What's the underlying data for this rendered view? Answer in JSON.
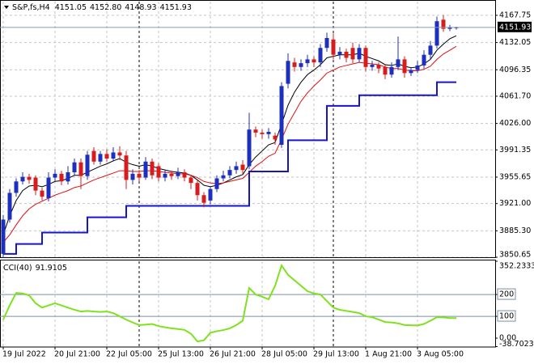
{
  "chart_data": [
    {
      "type": "candlestick",
      "title": "S&P,fs,H4",
      "ohlc_labels": [
        "4151.05",
        "4152.80",
        "4148.93",
        "4151.93"
      ],
      "categories": [
        "19 Jul 2022",
        null,
        null,
        null,
        null,
        null,
        null,
        null,
        "20 Jul 21:00",
        null,
        null,
        null,
        null,
        null,
        null,
        null,
        "22 Jul 05:00",
        null,
        null,
        null,
        null,
        null,
        null,
        null,
        "25 Jul 13:00",
        null,
        null,
        null,
        null,
        null,
        null,
        null,
        "26 Jul 21:00",
        null,
        null,
        null,
        null,
        null,
        null,
        null,
        "28 Jul 05:00",
        null,
        null,
        null,
        null,
        null,
        null,
        null,
        "29 Jul 13:00",
        null,
        null,
        null,
        null,
        null,
        null,
        null,
        "1 Aug 21:00",
        null,
        null,
        null,
        null,
        null,
        null,
        null,
        "3 Aug 05:00",
        null,
        null,
        null,
        null,
        null,
        null
      ],
      "open": [
        3855,
        3900,
        3935,
        3950,
        3956,
        3955,
        3938,
        3928,
        3955,
        3960,
        3950,
        3962,
        3975,
        3957,
        3990,
        3976,
        3986,
        3980,
        3988,
        3984,
        3952,
        3960,
        3955,
        3976,
        3970,
        3955,
        3960,
        3957,
        3962,
        3955,
        3948,
        3932,
        3925,
        3940,
        3954,
        3958,
        3965,
        3972,
        3970,
        4018,
        4014,
        4012,
        4010,
        3998,
        4078,
        4106,
        4100,
        4105,
        4110,
        4106,
        4125,
        4136,
        4116,
        4120,
        4125,
        4110,
        4125,
        4100,
        4103,
        4100,
        4090,
        4100,
        4110,
        4092,
        4096,
        4102,
        4116,
        4128,
        4162,
        4150,
        4151.05
      ],
      "high": [
        3906,
        3940,
        3954,
        3962,
        3960,
        3958,
        3942,
        3962,
        3966,
        3964,
        3970,
        3980,
        3980,
        3990,
        3995,
        3990,
        3992,
        3995,
        3996,
        3990,
        3966,
        3965,
        3982,
        3980,
        3974,
        3965,
        3964,
        3968,
        3966,
        3958,
        3952,
        3936,
        3944,
        3958,
        3964,
        3970,
        3976,
        3978,
        4040,
        4022,
        4018,
        4020,
        4014,
        4080,
        4118,
        4112,
        4110,
        4116,
        4114,
        4130,
        4145,
        4144,
        4126,
        4124,
        4132,
        4130,
        4128,
        4108,
        4106,
        4104,
        4106,
        4140,
        4114,
        4100,
        4108,
        4122,
        4134,
        4166,
        4168,
        4155,
        4152.8
      ],
      "low": [
        3850,
        3896,
        3930,
        3946,
        3947,
        3932,
        3925,
        3924,
        3950,
        3945,
        3946,
        3958,
        3940,
        3952,
        3972,
        3972,
        3976,
        3976,
        3978,
        3940,
        3946,
        3950,
        3952,
        3953,
        3950,
        3950,
        3952,
        3953,
        3950,
        3940,
        3925,
        3916,
        3920,
        3936,
        3950,
        3954,
        3960,
        3960,
        3966,
        4008,
        4006,
        4006,
        3998,
        3994,
        4072,
        4094,
        4095,
        4100,
        4100,
        4100,
        4120,
        4110,
        4110,
        4106,
        4105,
        4106,
        4094,
        4095,
        4092,
        4084,
        4086,
        4096,
        4086,
        4088,
        4092,
        4098,
        4110,
        4124,
        4146,
        4147,
        4148.93
      ],
      "close": [
        3900,
        3935,
        3950,
        3956,
        3952,
        3938,
        3930,
        3955,
        3960,
        3950,
        3962,
        3975,
        3957,
        3985,
        3976,
        3986,
        3980,
        3988,
        3984,
        3952,
        3960,
        3955,
        3976,
        3958,
        3955,
        3960,
        3957,
        3962,
        3955,
        3948,
        3932,
        3922,
        3940,
        3954,
        3958,
        3965,
        3970,
        3965,
        4018,
        4014,
        4012,
        4015,
        4005,
        4075,
        4108,
        4100,
        4105,
        4110,
        4106,
        4125,
        4138,
        4116,
        4120,
        4112,
        4110,
        4125,
        4100,
        4103,
        4098,
        4090,
        4100,
        4110,
        4092,
        4096,
        4102,
        4116,
        4128,
        4160,
        4150,
        4152,
        4151.93
      ],
      "up_color": "#1c2fbf",
      "down_color": "#d81c1c",
      "series": [
        {
          "color": "#000000",
          "width": 1,
          "values": [
            3880,
            3905,
            3925,
            3938,
            3944,
            3945,
            3943,
            3946,
            3950,
            3951,
            3954,
            3958,
            3958,
            3962,
            3966,
            3970,
            3973,
            3977,
            3980,
            3975,
            3972,
            3970,
            3972,
            3970,
            3967,
            3965,
            3963,
            3962,
            3961,
            3958,
            3952,
            3945,
            3943,
            3945,
            3948,
            3952,
            3956,
            3959,
            3972,
            3982,
            3990,
            3998,
            4001,
            4025,
            4050,
            4067,
            4080,
            4090,
            4096,
            4103,
            4112,
            4114,
            4116,
            4116,
            4116,
            4118,
            4114,
            4111,
            4108,
            4103,
            4102,
            4104,
            4101,
            4099,
            4100,
            4104,
            4110,
            4122,
            4130,
            4137,
            4141
          ]
        },
        {
          "color": "#e01010",
          "width": 1,
          "values": [
            3870,
            3880,
            3893,
            3905,
            3914,
            3920,
            3924,
            3928,
            3932,
            3935,
            3938,
            3942,
            3944,
            3948,
            3952,
            3955,
            3958,
            3961,
            3964,
            3964,
            3963,
            3963,
            3964,
            3964,
            3963,
            3962,
            3961,
            3960,
            3960,
            3958,
            3955,
            3950,
            3948,
            3947,
            3948,
            3950,
            3952,
            3954,
            3962,
            3970,
            3976,
            3983,
            3987,
            4005,
            4025,
            4040,
            4055,
            4066,
            4075,
            4083,
            4092,
            4096,
            4100,
            4102,
            4104,
            4106,
            4105,
            4104,
            4103,
            4100,
            4098,
            4098,
            4096,
            4095,
            4095,
            4097,
            4101,
            4110,
            4117,
            4122,
            4127
          ]
        },
        {
          "color": "#1414d2",
          "width": 2,
          "step": true,
          "values": [
            3855,
            3855,
            3868,
            3868,
            3868,
            3868,
            3883,
            3883,
            3883,
            3883,
            3883,
            3883,
            3883,
            3903,
            3903,
            3903,
            3903,
            3903,
            3903,
            3918,
            3918,
            3918,
            3918,
            3918,
            3918,
            3918,
            3918,
            3918,
            3918,
            3918,
            3918,
            3918,
            3918,
            3918,
            3918,
            3918,
            3918,
            3918,
            3963,
            3963,
            3963,
            3963,
            3963,
            3963,
            4004,
            4004,
            4004,
            4004,
            4004,
            4004,
            4049,
            4049,
            4049,
            4049,
            4049,
            4063,
            4063,
            4063,
            4063,
            4063,
            4063,
            4063,
            4063,
            4063,
            4063,
            4063,
            4063,
            4080,
            4080,
            4080,
            4080
          ]
        }
      ],
      "ylim": [
        3850.65,
        4185.68
      ],
      "yticks": [
        4167.75,
        4132.05,
        4096.35,
        {
          "value": 4061.7,
          "label": "4061.70"
        },
        {
          "value": 4026,
          "label": "4026.00"
        },
        3991.35,
        3955.65,
        {
          "value": 3921,
          "label": "3921.00"
        },
        {
          "value": 3885.3,
          "label": "3885.30"
        },
        3850.65
      ],
      "grid": true
    },
    {
      "type": "line",
      "series": [
        {
          "name": "CCI(40)",
          "color": "#7ee21c",
          "values": [
            85,
            150,
            207,
            205,
            196,
            160,
            140,
            150,
            160,
            150,
            140,
            130,
            122,
            125,
            122,
            120,
            122,
            115,
            100,
            85,
            72,
            60,
            62,
            65,
            55,
            50,
            45,
            42,
            38,
            20,
            -15,
            -10,
            25,
            32,
            37,
            45,
            60,
            80,
            230,
            200,
            190,
            178,
            240,
            333,
            290,
            265,
            240,
            215,
            205,
            200,
            170,
            140,
            130,
            125,
            120,
            115,
            100,
            96,
            85,
            74,
            72,
            68,
            60,
            59,
            58,
            65,
            80,
            96,
            95,
            92,
            91.9105
          ]
        }
      ],
      "ylim": [
        -38.7023,
        352.2333
      ],
      "yticks": [
        352.2333,
        200,
        100,
        {
          "value": 0,
          "label": "0.00"
        },
        -38.7023
      ],
      "levels": [
        200,
        100
      ],
      "level_color": "#7a8fa6"
    }
  ]
}
